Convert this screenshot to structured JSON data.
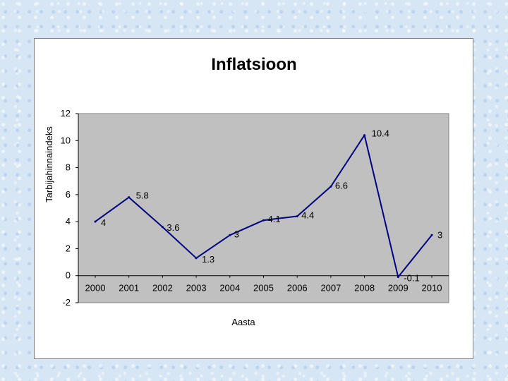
{
  "chart_data": {
    "type": "line",
    "title": "Inflatsioon",
    "xlabel": "Aasta",
    "ylabel": "Tarbijahinnaindeks",
    "categories": [
      "2000",
      "2001",
      "2002",
      "2003",
      "2004",
      "2005",
      "2006",
      "2007",
      "2008",
      "2009",
      "2010"
    ],
    "values": [
      4,
      5.8,
      3.6,
      1.3,
      3,
      4.1,
      4.4,
      6.6,
      10.4,
      -0.1,
      3
    ],
    "data_labels": [
      "4",
      "5.8",
      "3.6",
      "1.3",
      "3",
      "4.1",
      "4.4",
      "6.6",
      "10.4",
      "-0.1",
      "3"
    ],
    "y_ticks": [
      "12",
      "10",
      "8",
      "6",
      "4",
      "2",
      "0",
      "-2"
    ],
    "ylim": [
      -2,
      12
    ],
    "grid": false,
    "legend": "none",
    "colors": {
      "line": "#000080",
      "plot_area": "#c0c0c0",
      "page_background": "#d6e6f5",
      "chart_background": "#ffffff"
    }
  }
}
